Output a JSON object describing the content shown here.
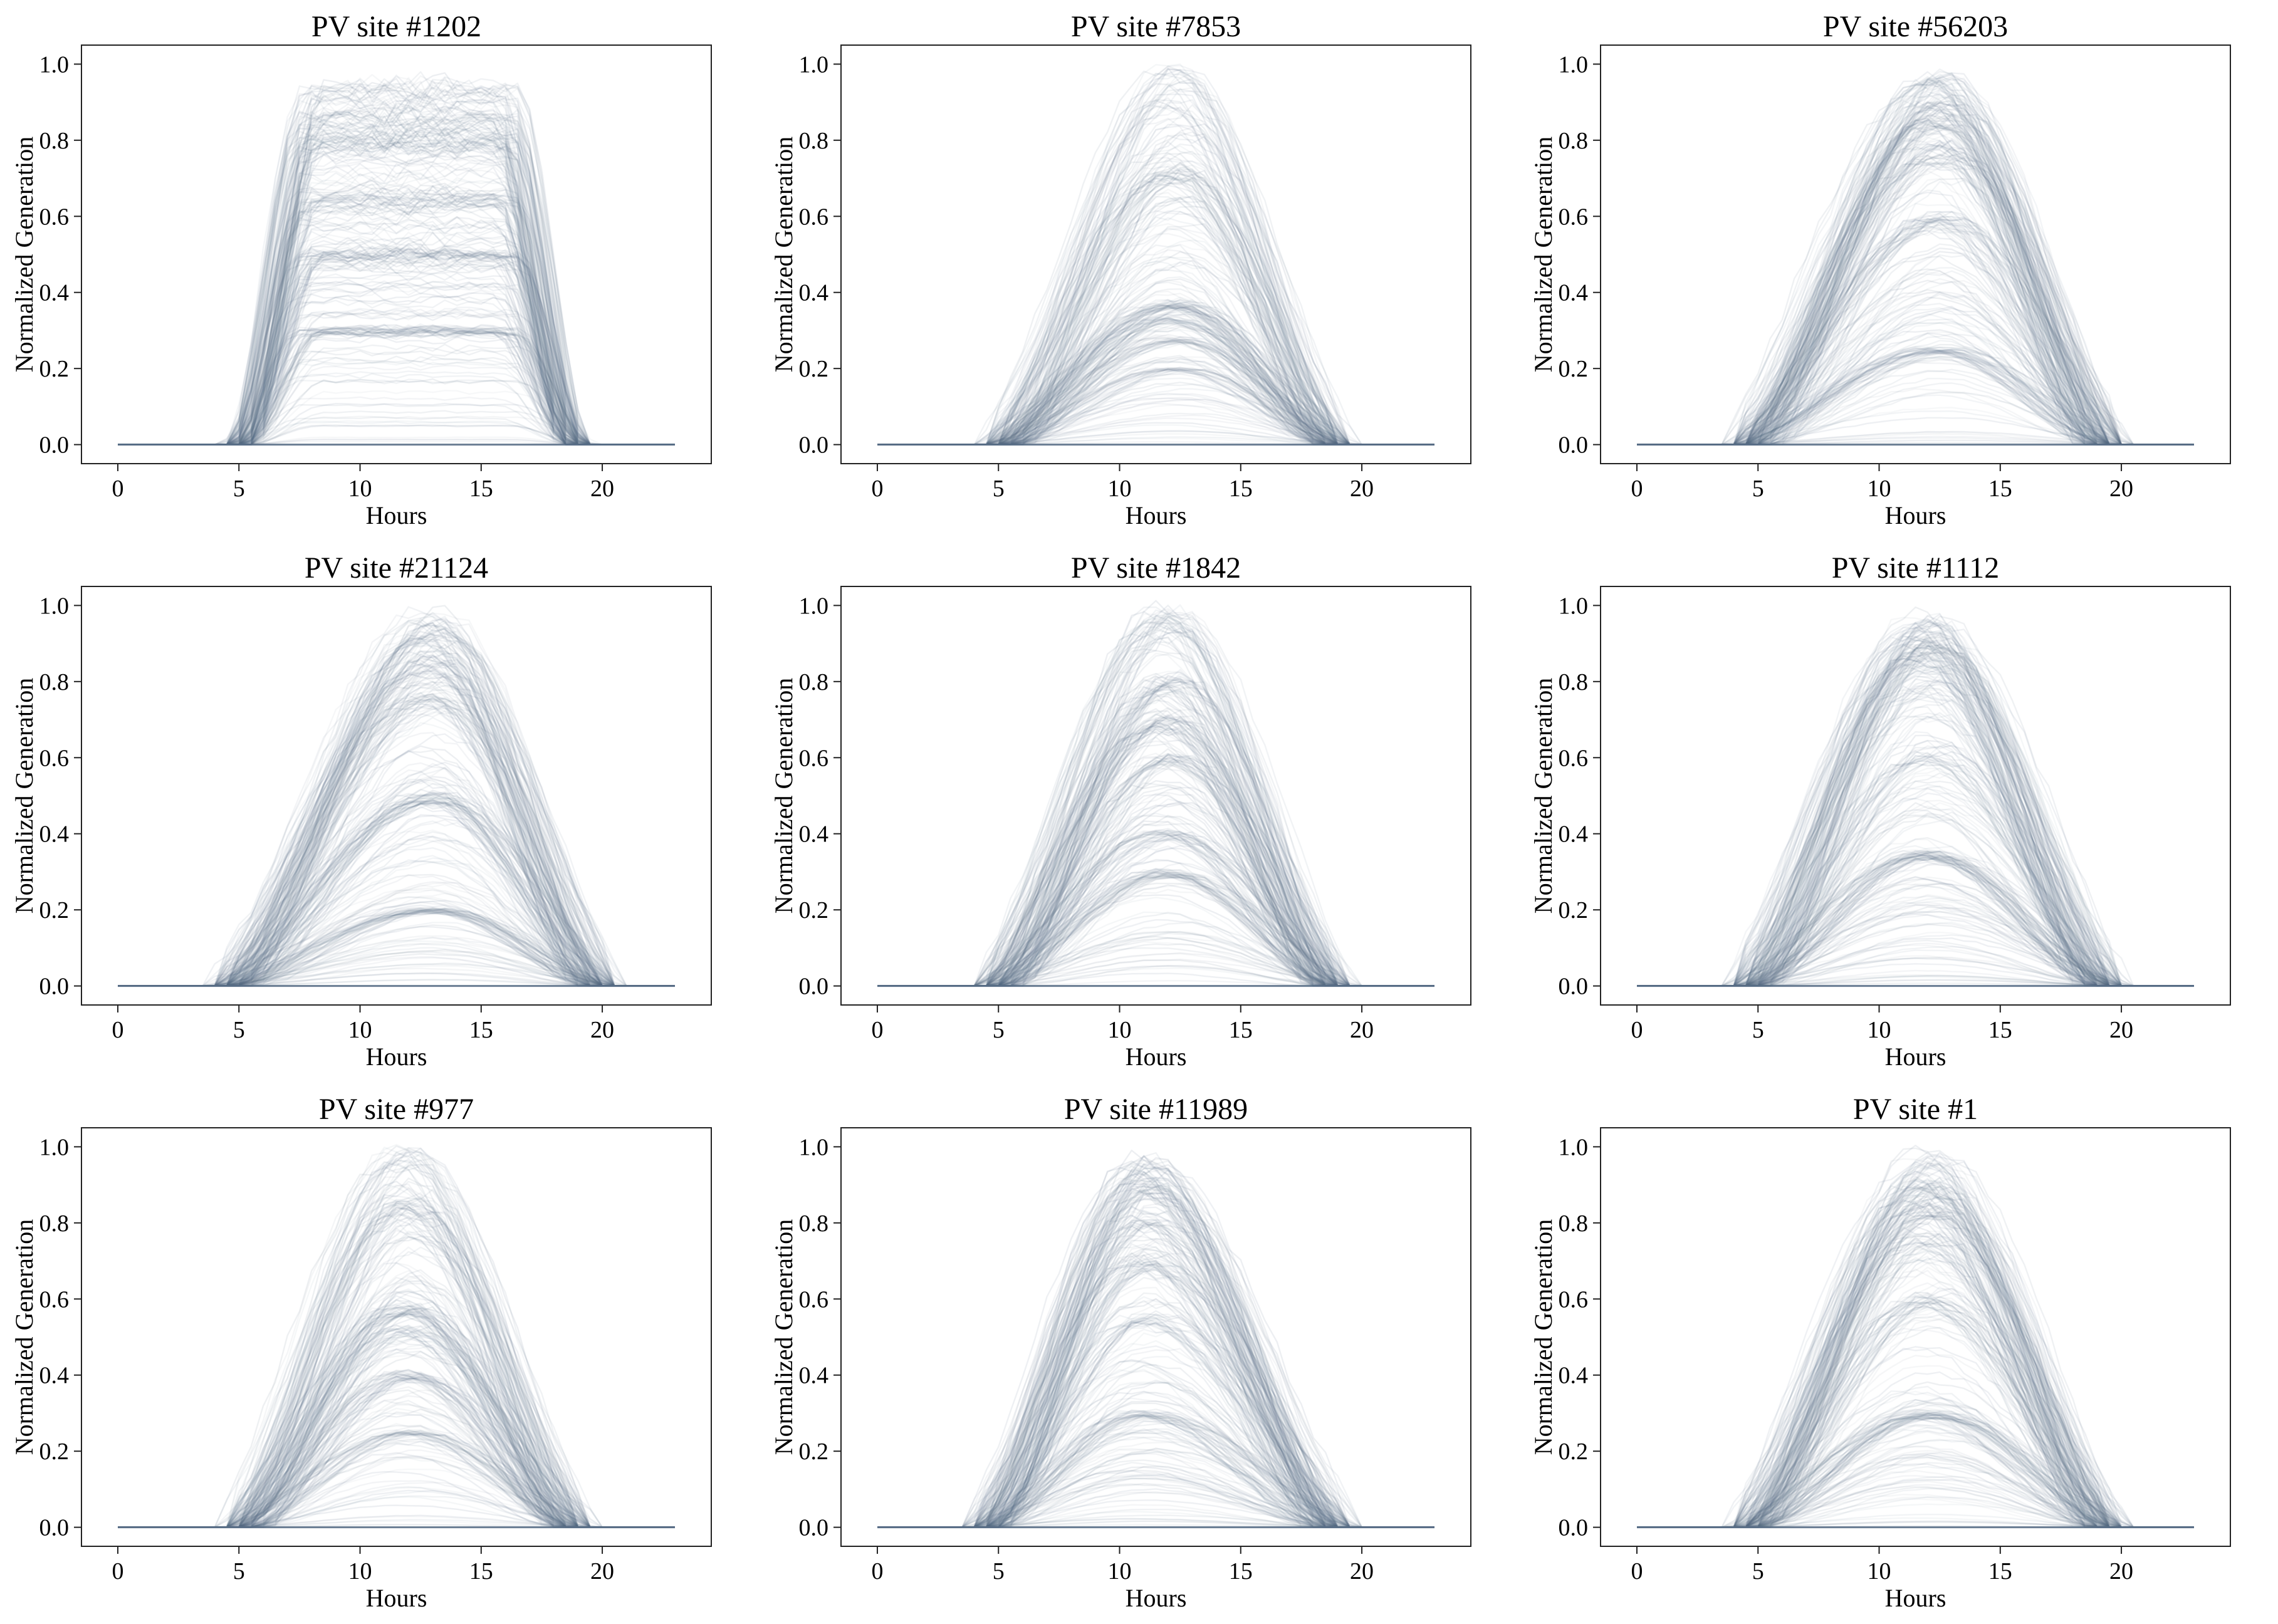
{
  "style": {
    "trace_color": "#5a6f87",
    "axis_color": "#222222",
    "background": "#ffffff"
  },
  "chart_data": [
    {
      "type": "line",
      "title": "PV site #1202",
      "xlabel": "Hours",
      "ylabel": "Normalized Generation",
      "xlim": [
        -1.5,
        24.5
      ],
      "ylim": [
        -0.05,
        1.05
      ],
      "xticks": [
        0,
        5,
        10,
        15,
        20
      ],
      "yticks": [
        0.0,
        0.2,
        0.4,
        0.6,
        0.8,
        1.0
      ],
      "grid": false,
      "legend": "none",
      "profile": {
        "rise_start": 5,
        "rise_end": 8,
        "fall_start": 16,
        "fall_end": 19,
        "plateau": true,
        "clusters": [
          0.93,
          0.86,
          0.8,
          0.65,
          0.5,
          0.3
        ]
      },
      "envelope": {
        "x": [
          0,
          1,
          2,
          3,
          4,
          5,
          6,
          7,
          8,
          9,
          10,
          11,
          12,
          13,
          14,
          15,
          16,
          17,
          18,
          19,
          20,
          21,
          22,
          23
        ],
        "y": [
          0,
          0,
          0,
          0,
          0,
          0.02,
          0.35,
          0.85,
          0.95,
          0.97,
          0.98,
          0.98,
          0.98,
          0.98,
          0.98,
          0.97,
          0.9,
          0.45,
          0.05,
          0,
          0,
          0,
          0,
          0
        ]
      }
    },
    {
      "type": "line",
      "title": "PV site #7853",
      "xlabel": "Hours",
      "ylabel": "Normalized Generation",
      "xlim": [
        -1.5,
        24.5
      ],
      "ylim": [
        -0.05,
        1.05
      ],
      "xticks": [
        0,
        5,
        10,
        15,
        20
      ],
      "yticks": [
        0.0,
        0.2,
        0.4,
        0.6,
        0.8,
        1.0
      ],
      "grid": false,
      "legend": "none",
      "profile": {
        "rise_start": 5,
        "rise_end": 12.3,
        "fall_start": 12.3,
        "fall_end": 19,
        "plateau": false,
        "clusters": [
          0.98,
          0.72,
          0.37,
          0.33,
          0.28,
          0.2
        ]
      },
      "envelope": {
        "x": [
          0,
          1,
          2,
          3,
          4,
          5,
          6,
          7,
          8,
          9,
          10,
          11,
          12,
          13,
          14,
          15,
          16,
          17,
          18,
          19,
          20,
          21,
          22,
          23
        ],
        "y": [
          0,
          0,
          0,
          0,
          0,
          0,
          0.05,
          0.15,
          0.32,
          0.55,
          0.75,
          0.9,
          0.98,
          0.96,
          0.85,
          0.65,
          0.4,
          0.18,
          0.04,
          0,
          0,
          0,
          0,
          0
        ]
      }
    },
    {
      "type": "line",
      "title": "PV site #56203",
      "xlabel": "Hours",
      "ylabel": "Normalized Generation",
      "xlim": [
        -1.5,
        24.5
      ],
      "ylim": [
        -0.05,
        1.05
      ],
      "xticks": [
        0,
        5,
        10,
        15,
        20
      ],
      "yticks": [
        0.0,
        0.2,
        0.4,
        0.6,
        0.8,
        1.0
      ],
      "grid": false,
      "legend": "none",
      "profile": {
        "rise_start": 4.5,
        "rise_end": 12.5,
        "fall_start": 12.5,
        "fall_end": 19.5,
        "plateau": false,
        "clusters": [
          0.96,
          0.9,
          0.85,
          0.78,
          0.6,
          0.25
        ]
      },
      "envelope": {
        "x": [
          0,
          1,
          2,
          3,
          4,
          5,
          6,
          7,
          8,
          9,
          10,
          11,
          12,
          13,
          14,
          15,
          16,
          17,
          18,
          19,
          20,
          21,
          22,
          23
        ],
        "y": [
          0,
          0,
          0,
          0,
          0,
          0.03,
          0.12,
          0.3,
          0.52,
          0.72,
          0.86,
          0.94,
          0.97,
          0.96,
          0.9,
          0.76,
          0.55,
          0.3,
          0.1,
          0.01,
          0,
          0,
          0,
          0
        ]
      }
    },
    {
      "type": "line",
      "title": "PV site #21124",
      "xlabel": "Hours",
      "ylabel": "Normalized Generation",
      "xlim": [
        -1.5,
        24.5
      ],
      "ylim": [
        -0.05,
        1.05
      ],
      "xticks": [
        0,
        5,
        10,
        15,
        20
      ],
      "yticks": [
        0.0,
        0.2,
        0.4,
        0.6,
        0.8,
        1.0
      ],
      "grid": false,
      "legend": "none",
      "profile": {
        "rise_start": 4.5,
        "rise_end": 13,
        "fall_start": 13,
        "fall_end": 20,
        "plateau": false,
        "clusters": [
          0.97,
          0.92,
          0.85,
          0.75,
          0.5,
          0.2
        ]
      },
      "envelope": {
        "x": [
          0,
          1,
          2,
          3,
          4,
          5,
          6,
          7,
          8,
          9,
          10,
          11,
          12,
          13,
          14,
          15,
          16,
          17,
          18,
          19,
          20,
          21,
          22,
          23
        ],
        "y": [
          0,
          0,
          0,
          0,
          0,
          0.02,
          0.08,
          0.22,
          0.42,
          0.62,
          0.8,
          0.91,
          0.97,
          0.98,
          0.94,
          0.82,
          0.62,
          0.38,
          0.15,
          0.03,
          0,
          0,
          0,
          0
        ]
      }
    },
    {
      "type": "line",
      "title": "PV site #1842",
      "xlabel": "Hours",
      "ylabel": "Normalized Generation",
      "xlim": [
        -1.5,
        24.5
      ],
      "ylim": [
        -0.05,
        1.05
      ],
      "xticks": [
        0,
        5,
        10,
        15,
        20
      ],
      "yticks": [
        0.0,
        0.2,
        0.4,
        0.6,
        0.8,
        1.0
      ],
      "grid": false,
      "legend": "none",
      "profile": {
        "rise_start": 4.8,
        "rise_end": 12,
        "fall_start": 12,
        "fall_end": 19,
        "plateau": false,
        "clusters": [
          0.98,
          0.8,
          0.7,
          0.6,
          0.4,
          0.3
        ]
      },
      "envelope": {
        "x": [
          0,
          1,
          2,
          3,
          4,
          5,
          6,
          7,
          8,
          9,
          10,
          11,
          12,
          13,
          14,
          15,
          16,
          17,
          18,
          19,
          20,
          21,
          22,
          23
        ],
        "y": [
          0,
          0,
          0,
          0,
          0,
          0.02,
          0.1,
          0.28,
          0.5,
          0.72,
          0.88,
          0.96,
          0.98,
          0.94,
          0.82,
          0.62,
          0.4,
          0.18,
          0.04,
          0,
          0,
          0,
          0,
          0
        ]
      }
    },
    {
      "type": "line",
      "title": "PV site #1112",
      "xlabel": "Hours",
      "ylabel": "Normalized Generation",
      "xlim": [
        -1.5,
        24.5
      ],
      "ylim": [
        -0.05,
        1.05
      ],
      "xticks": [
        0,
        5,
        10,
        15,
        20
      ],
      "yticks": [
        0.0,
        0.2,
        0.4,
        0.6,
        0.8,
        1.0
      ],
      "grid": false,
      "legend": "none",
      "profile": {
        "rise_start": 4.5,
        "rise_end": 12,
        "fall_start": 12,
        "fall_end": 19.5,
        "plateau": false,
        "clusters": [
          0.97,
          0.92,
          0.88,
          0.8,
          0.6,
          0.35
        ]
      },
      "envelope": {
        "x": [
          0,
          1,
          2,
          3,
          4,
          5,
          6,
          7,
          8,
          9,
          10,
          11,
          12,
          13,
          14,
          15,
          16,
          17,
          18,
          19,
          20,
          21,
          22,
          23
        ],
        "y": [
          0,
          0,
          0,
          0,
          0,
          0.03,
          0.12,
          0.3,
          0.52,
          0.72,
          0.88,
          0.96,
          0.97,
          0.93,
          0.82,
          0.64,
          0.42,
          0.22,
          0.07,
          0.01,
          0,
          0,
          0,
          0
        ]
      }
    },
    {
      "type": "line",
      "title": "PV site #977",
      "xlabel": "Hours",
      "ylabel": "Normalized Generation",
      "xlim": [
        -1.5,
        24.5
      ],
      "ylim": [
        -0.05,
        1.05
      ],
      "xticks": [
        0,
        5,
        10,
        15,
        20
      ],
      "yticks": [
        0.0,
        0.2,
        0.4,
        0.6,
        0.8,
        1.0
      ],
      "grid": false,
      "legend": "none",
      "profile": {
        "rise_start": 5,
        "rise_end": 12,
        "fall_start": 12,
        "fall_end": 19,
        "plateau": false,
        "clusters": [
          0.98,
          0.85,
          0.58,
          0.52,
          0.4,
          0.25
        ]
      },
      "envelope": {
        "x": [
          0,
          1,
          2,
          3,
          4,
          5,
          6,
          7,
          8,
          9,
          10,
          11,
          12,
          13,
          14,
          15,
          16,
          17,
          18,
          19,
          20,
          21,
          22,
          23
        ],
        "y": [
          0,
          0,
          0,
          0,
          0,
          0.01,
          0.06,
          0.2,
          0.42,
          0.64,
          0.82,
          0.94,
          0.98,
          0.95,
          0.85,
          0.67,
          0.45,
          0.22,
          0.06,
          0,
          0,
          0,
          0,
          0
        ]
      }
    },
    {
      "type": "line",
      "title": "PV site #11989",
      "xlabel": "Hours",
      "ylabel": "Normalized Generation",
      "xlim": [
        -1.5,
        24.5
      ],
      "ylim": [
        -0.05,
        1.05
      ],
      "xticks": [
        0,
        5,
        10,
        15,
        20
      ],
      "yticks": [
        0.0,
        0.2,
        0.4,
        0.6,
        0.8,
        1.0
      ],
      "grid": false,
      "legend": "none",
      "profile": {
        "rise_start": 4.3,
        "rise_end": 11,
        "fall_start": 11,
        "fall_end": 19,
        "plateau": false,
        "clusters": [
          0.96,
          0.9,
          0.82,
          0.7,
          0.55,
          0.3
        ]
      },
      "envelope": {
        "x": [
          0,
          1,
          2,
          3,
          4,
          5,
          6,
          7,
          8,
          9,
          10,
          11,
          12,
          13,
          14,
          15,
          16,
          17,
          18,
          19,
          20,
          21,
          22,
          23
        ],
        "y": [
          0,
          0,
          0,
          0,
          0,
          0.04,
          0.18,
          0.42,
          0.66,
          0.85,
          0.95,
          0.96,
          0.93,
          0.84,
          0.7,
          0.5,
          0.3,
          0.13,
          0.03,
          0,
          0,
          0,
          0,
          0
        ]
      }
    },
    {
      "type": "line",
      "title": "PV site #1",
      "xlabel": "Hours",
      "ylabel": "Normalized Generation",
      "xlim": [
        -1.5,
        24.5
      ],
      "ylim": [
        -0.05,
        1.05
      ],
      "xticks": [
        0,
        5,
        10,
        15,
        20
      ],
      "yticks": [
        0.0,
        0.2,
        0.4,
        0.6,
        0.8,
        1.0
      ],
      "grid": false,
      "legend": "none",
      "profile": {
        "rise_start": 4.5,
        "rise_end": 12,
        "fall_start": 12,
        "fall_end": 19.5,
        "plateau": false,
        "clusters": [
          0.97,
          0.9,
          0.84,
          0.76,
          0.6,
          0.3
        ]
      },
      "envelope": {
        "x": [
          0,
          1,
          2,
          3,
          4,
          5,
          6,
          7,
          8,
          9,
          10,
          11,
          12,
          13,
          14,
          15,
          16,
          17,
          18,
          19,
          20,
          21,
          22,
          23
        ],
        "y": [
          0,
          0,
          0,
          0,
          0,
          0.03,
          0.13,
          0.32,
          0.55,
          0.76,
          0.9,
          0.96,
          0.97,
          0.94,
          0.84,
          0.67,
          0.45,
          0.24,
          0.08,
          0.01,
          0,
          0,
          0,
          0
        ]
      }
    }
  ]
}
